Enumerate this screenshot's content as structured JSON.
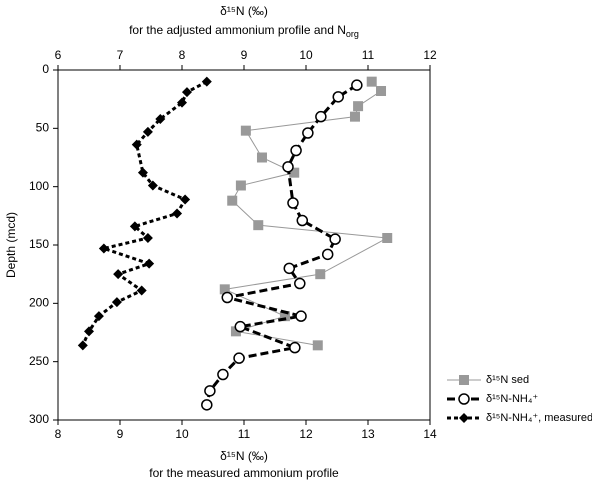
{
  "chart_data": {
    "type": "scatter",
    "x_label": {
      "line1": "δ¹⁵N (‰)",
      "line2": "for the measured ammonium profile"
    },
    "x2_label": {
      "line1": "δ¹⁵N (‰)",
      "line2": "for the adjusted ammonium profile and N",
      "line2_sub": "org"
    },
    "y_label": "Depth (mcd)",
    "xlim": [
      8,
      14
    ],
    "xticks": [
      8,
      9,
      10,
      11,
      12,
      13,
      14
    ],
    "x2lim": [
      6,
      12
    ],
    "x2ticks": [
      6,
      7,
      8,
      9,
      10,
      11,
      12
    ],
    "ylim": [
      0,
      300
    ],
    "yticks": [
      0,
      50,
      100,
      150,
      200,
      250,
      300
    ],
    "y_inverted": true,
    "series": [
      {
        "name": "δ¹⁵N sed",
        "color": "#999999",
        "marker": "square",
        "line": "solid",
        "axis": "x2",
        "x": [
          11.06,
          11.21,
          10.84,
          10.79,
          9.03,
          9.29,
          9.81,
          8.95,
          8.81,
          9.23,
          11.31,
          10.23,
          8.69,
          9.66,
          8.87,
          10.19
        ],
        "y": [
          10,
          18,
          31,
          40,
          52,
          75,
          88,
          99,
          112,
          133,
          144,
          175,
          188,
          211,
          224,
          236
        ]
      },
      {
        "name": "δ¹⁵N-NH₄⁺",
        "color": "#000000",
        "marker": "circle",
        "line": "dashed",
        "axis": "x2",
        "x": [
          10.82,
          10.52,
          10.24,
          10.03,
          9.84,
          9.71,
          9.79,
          9.94,
          10.47,
          10.35,
          9.73,
          9.9,
          8.73,
          9.92,
          8.94,
          9.82,
          8.92,
          8.66,
          8.45,
          8.4
        ],
        "y": [
          13,
          23,
          40,
          54,
          69,
          83,
          114,
          129,
          145,
          158,
          170,
          183,
          195,
          211,
          220,
          238,
          247,
          261,
          275,
          287
        ]
      },
      {
        "name": "δ¹⁵N-NH₄⁺, measured",
        "color": "#000000",
        "marker": "diamond",
        "line": "dotted",
        "axis": "x",
        "x": [
          10.4,
          10.08,
          10.0,
          9.65,
          9.45,
          9.27,
          9.37,
          9.53,
          10.05,
          9.92,
          9.24,
          9.45,
          8.74,
          9.47,
          8.97,
          9.35,
          8.95,
          8.66,
          8.5,
          8.4
        ],
        "y": [
          10,
          19,
          28,
          42,
          53,
          64,
          88,
          99,
          111,
          123,
          134,
          144,
          153,
          166,
          175,
          189,
          199,
          211,
          224,
          236
        ]
      }
    ]
  }
}
